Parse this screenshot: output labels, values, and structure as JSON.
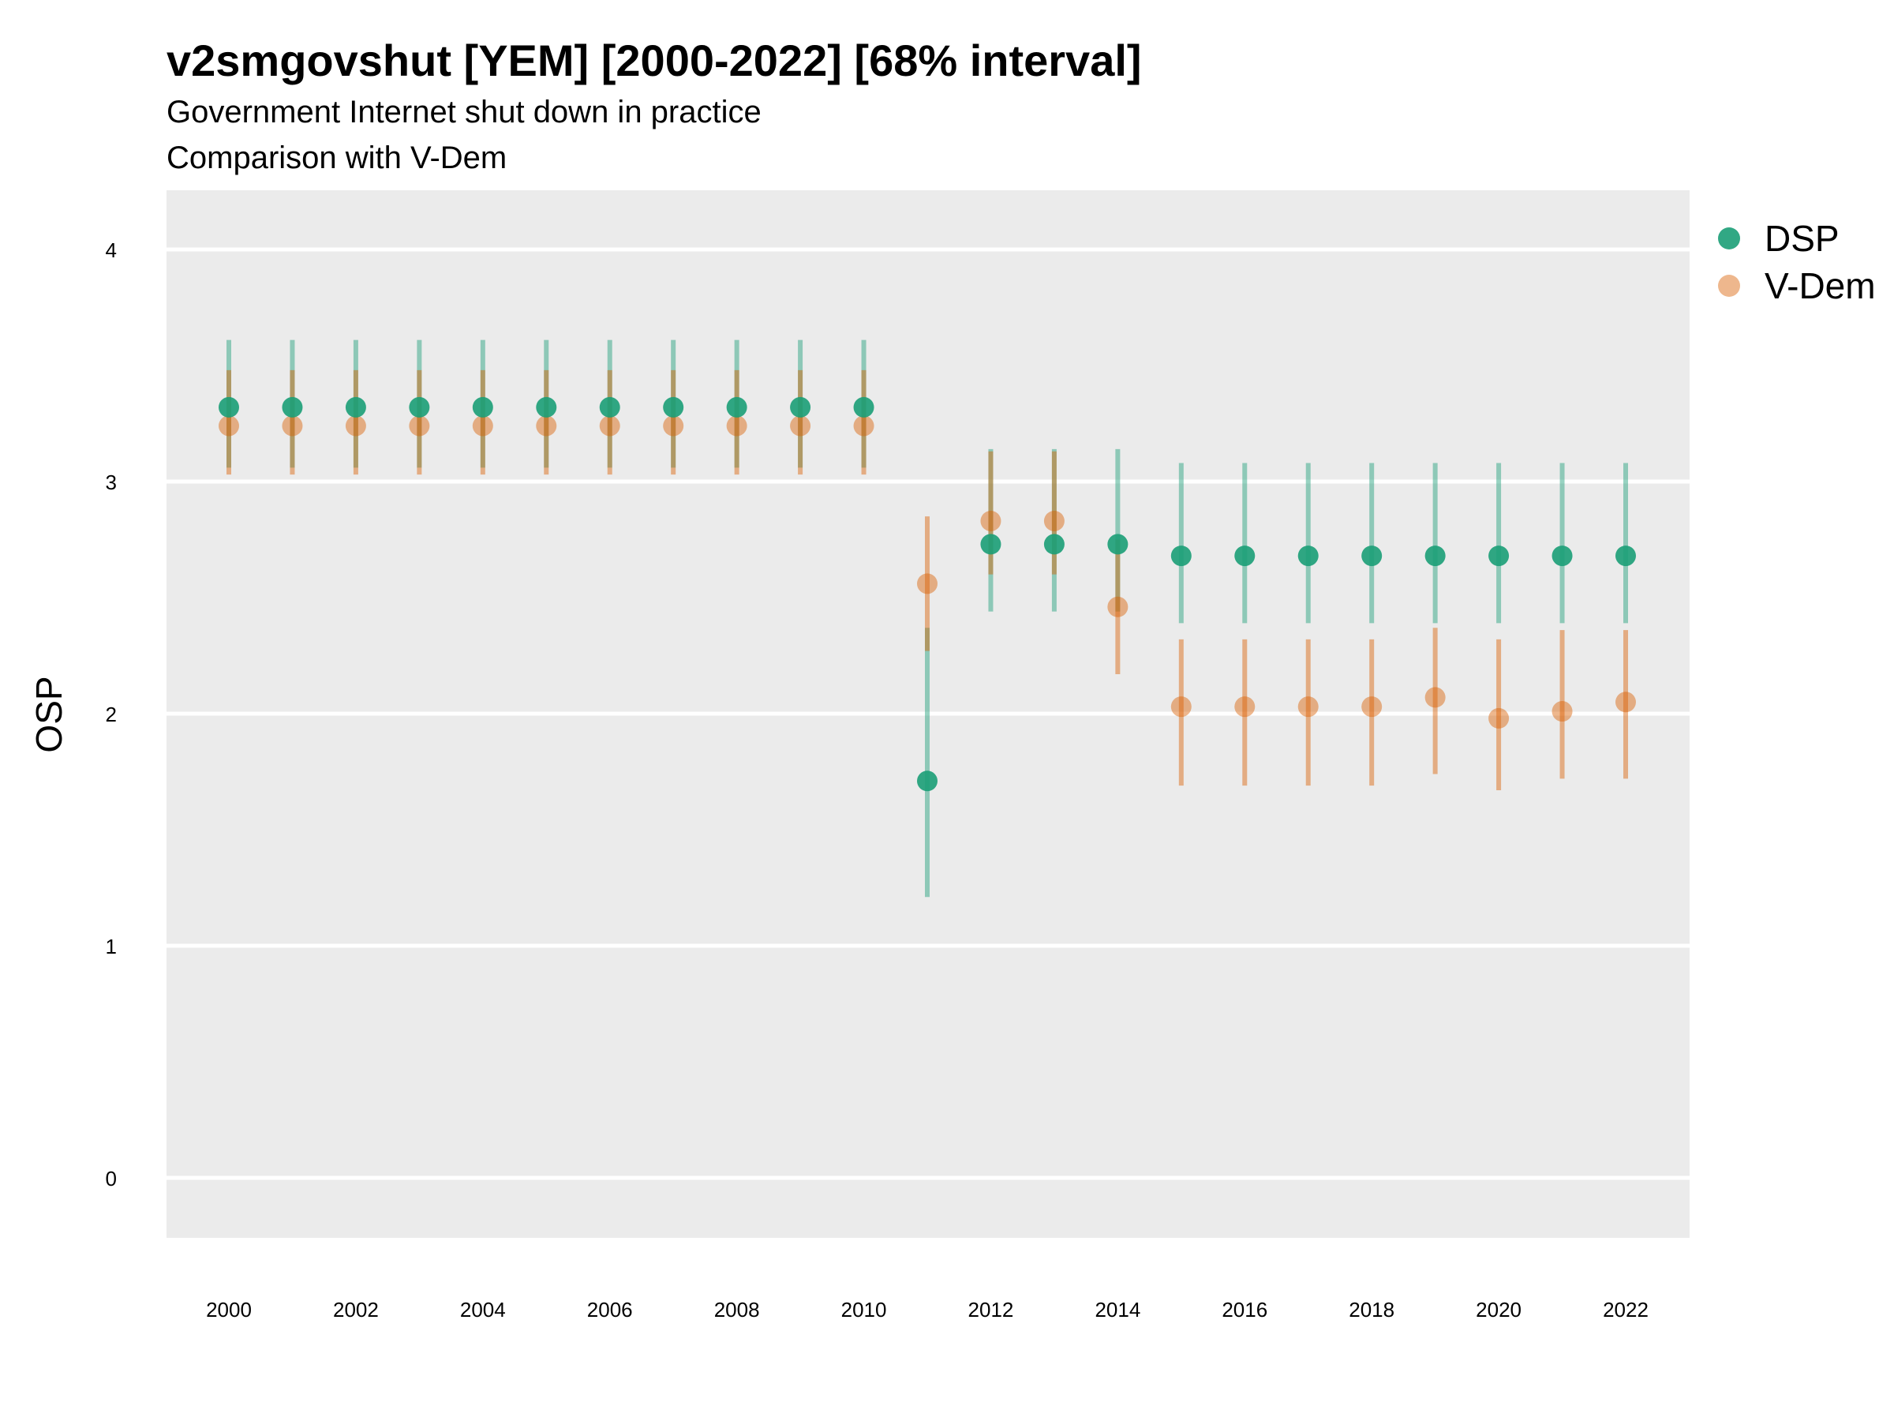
{
  "chart_data": {
    "type": "scatter",
    "title": "v2smgovshut [YEM] [2000-2022] [68% interval]",
    "subtitle_lines": [
      "Government Internet shut down in practice",
      "Comparison with V-Dem"
    ],
    "ylabel": "OSP",
    "xlabel": "",
    "ylim": [
      -0.25,
      4.25
    ],
    "y_ticks": [
      0,
      1,
      2,
      3,
      4
    ],
    "x_ticks": [
      2000,
      2002,
      2004,
      2006,
      2008,
      2010,
      2012,
      2014,
      2016,
      2018,
      2020,
      2022
    ],
    "grid": "horizontal",
    "legend_position": "top-right",
    "x": [
      2000,
      2001,
      2002,
      2003,
      2004,
      2005,
      2006,
      2007,
      2008,
      2009,
      2010,
      2011,
      2012,
      2013,
      2014,
      2015,
      2016,
      2017,
      2018,
      2019,
      2020,
      2021,
      2022
    ],
    "series": [
      {
        "name": "DSP",
        "color": "#1b9e77",
        "values": [
          3.32,
          3.32,
          3.32,
          3.32,
          3.32,
          3.32,
          3.32,
          3.32,
          3.32,
          3.32,
          3.32,
          1.71,
          2.73,
          2.73,
          2.73,
          2.68,
          2.68,
          2.68,
          2.68,
          2.68,
          2.68,
          2.68,
          2.68
        ],
        "lower": [
          3.06,
          3.06,
          3.06,
          3.06,
          3.06,
          3.06,
          3.06,
          3.06,
          3.06,
          3.06,
          3.06,
          1.21,
          2.44,
          2.44,
          2.44,
          2.39,
          2.39,
          2.39,
          2.39,
          2.39,
          2.39,
          2.39,
          2.39
        ],
        "upper": [
          3.61,
          3.61,
          3.61,
          3.61,
          3.61,
          3.61,
          3.61,
          3.61,
          3.61,
          3.61,
          3.61,
          2.37,
          3.14,
          3.14,
          3.14,
          3.08,
          3.08,
          3.08,
          3.08,
          3.08,
          3.08,
          3.08,
          3.08
        ]
      },
      {
        "name": "V-Dem",
        "color": "#d95f02",
        "values": [
          3.24,
          3.24,
          3.24,
          3.24,
          3.24,
          3.24,
          3.24,
          3.24,
          3.24,
          3.24,
          3.24,
          2.56,
          2.83,
          2.83,
          2.46,
          2.03,
          2.03,
          2.03,
          2.03,
          2.07,
          1.98,
          2.01,
          2.05
        ],
        "lower": [
          3.03,
          3.03,
          3.03,
          3.03,
          3.03,
          3.03,
          3.03,
          3.03,
          3.03,
          3.03,
          3.03,
          2.27,
          2.6,
          2.6,
          2.17,
          1.69,
          1.69,
          1.69,
          1.69,
          1.74,
          1.67,
          1.72,
          1.72
        ],
        "upper": [
          3.48,
          3.48,
          3.48,
          3.48,
          3.48,
          3.48,
          3.48,
          3.48,
          3.48,
          3.48,
          3.48,
          2.85,
          3.13,
          3.13,
          2.75,
          2.32,
          2.32,
          2.32,
          2.32,
          2.37,
          2.32,
          2.36,
          2.36
        ]
      }
    ]
  }
}
